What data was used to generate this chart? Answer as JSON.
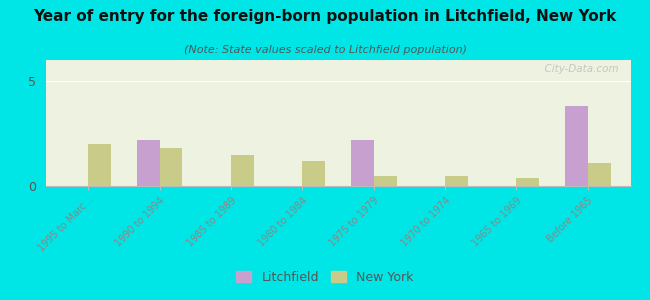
{
  "title": "Year of entry for the foreign-born population in Litchfield, New York",
  "subtitle": "(Note: State values scaled to Litchfield population)",
  "categories": [
    "1995 to Marc...",
    "1990 to 1994",
    "1985 to 1989",
    "1980 to 1984",
    "1975 to 1979",
    "1970 to 1974",
    "1965 to 1969",
    "Before 1965"
  ],
  "litchfield": [
    0,
    2.2,
    0,
    0,
    2.2,
    0,
    0,
    3.8
  ],
  "new_york": [
    2.0,
    1.8,
    1.5,
    1.2,
    0.5,
    0.5,
    0.4,
    1.1
  ],
  "litchfield_color": "#c8a0d0",
  "new_york_color": "#c8cc88",
  "background_color": "#00e5e5",
  "plot_bg": "#eef2e0",
  "ylim": [
    0,
    6
  ],
  "yticks": [
    0,
    5
  ],
  "watermark": "  City-Data.com",
  "legend_litchfield": "Litchfield",
  "legend_new_york": "New York",
  "title_fontsize": 11,
  "subtitle_fontsize": 8
}
